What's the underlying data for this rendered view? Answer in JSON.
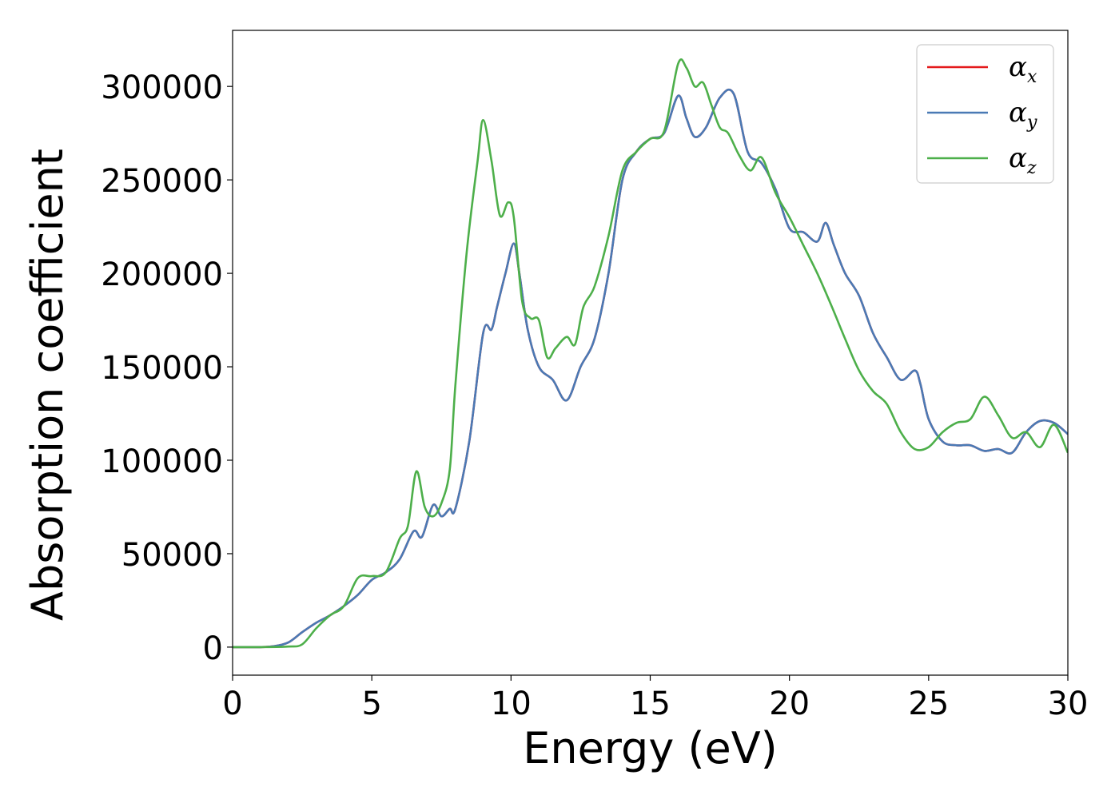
{
  "chart_data": {
    "type": "line",
    "title": "",
    "xlabel": "Energy (eV)",
    "ylabel": "Absorption coefficient",
    "xlim": [
      0,
      30
    ],
    "ylim": [
      -15000,
      330000
    ],
    "xticks": [
      0,
      5,
      10,
      15,
      20,
      25,
      30
    ],
    "xtick_labels": [
      "0",
      "5",
      "10",
      "15",
      "20",
      "25",
      "30"
    ],
    "yticks": [
      0,
      50000,
      100000,
      150000,
      200000,
      250000,
      300000
    ],
    "ytick_labels": [
      "0",
      "50000",
      "100000",
      "150000",
      "200000",
      "250000",
      "300000"
    ],
    "grid": false,
    "legend_position": "top-right",
    "series": [
      {
        "name": "αx",
        "symbol": "α",
        "subscript": "x",
        "color": "#e41a1c",
        "x": [
          0,
          1,
          1.5,
          2,
          2.5,
          3,
          3.5,
          4,
          4.5,
          5,
          5.5,
          6,
          6.5,
          6.8,
          7.2,
          7.5,
          7.8,
          8,
          8.5,
          9,
          9.3,
          9.5,
          9.8,
          10.1,
          10.3,
          10.6,
          11,
          11.5,
          12,
          12.5,
          13,
          13.5,
          14,
          14.5,
          15,
          15.5,
          16,
          16.3,
          16.6,
          17,
          17.5,
          18,
          18.5,
          19,
          19.5,
          20,
          20.5,
          21,
          21.3,
          21.6,
          22,
          22.5,
          23,
          23.5,
          24,
          24.5,
          24.7,
          25,
          25.5,
          26,
          26.5,
          27,
          27.5,
          28,
          28.5,
          29,
          29.5,
          30
        ],
        "y": [
          0,
          0,
          500,
          2500,
          8000,
          13000,
          17000,
          22000,
          28000,
          36000,
          40000,
          47000,
          62000,
          59000,
          76000,
          70000,
          74000,
          74000,
          110000,
          168000,
          170000,
          182000,
          200000,
          216000,
          200000,
          170000,
          150000,
          143000,
          132000,
          150000,
          165000,
          200000,
          250000,
          265000,
          272000,
          275000,
          295000,
          283000,
          273000,
          278000,
          294000,
          296000,
          265000,
          259000,
          245000,
          224000,
          222000,
          217000,
          227000,
          215000,
          200000,
          188000,
          168000,
          155000,
          143000,
          148000,
          141000,
          122000,
          110000,
          108000,
          108000,
          105000,
          106000,
          104000,
          115000,
          121000,
          120000,
          114000
        ]
      },
      {
        "name": "αy",
        "symbol": "α",
        "subscript": "y",
        "color": "#4a7ab5",
        "x": [
          0,
          1,
          1.5,
          2,
          2.5,
          3,
          3.5,
          4,
          4.5,
          5,
          5.5,
          6,
          6.5,
          6.8,
          7.2,
          7.5,
          7.8,
          8,
          8.5,
          9,
          9.3,
          9.5,
          9.8,
          10.1,
          10.3,
          10.6,
          11,
          11.5,
          12,
          12.5,
          13,
          13.5,
          14,
          14.5,
          15,
          15.5,
          16,
          16.3,
          16.6,
          17,
          17.5,
          18,
          18.5,
          19,
          19.5,
          20,
          20.5,
          21,
          21.3,
          21.6,
          22,
          22.5,
          23,
          23.5,
          24,
          24.5,
          24.7,
          25,
          25.5,
          26,
          26.5,
          27,
          27.5,
          28,
          28.5,
          29,
          29.5,
          30
        ],
        "y": [
          0,
          0,
          500,
          2500,
          8000,
          13000,
          17000,
          22000,
          28000,
          36000,
          40000,
          47000,
          62000,
          59000,
          76000,
          70000,
          74000,
          74000,
          110000,
          168000,
          170000,
          182000,
          200000,
          216000,
          200000,
          170000,
          150000,
          143000,
          132000,
          150000,
          165000,
          200000,
          250000,
          265000,
          272000,
          275000,
          295000,
          283000,
          273000,
          278000,
          294000,
          296000,
          265000,
          259000,
          245000,
          224000,
          222000,
          217000,
          227000,
          215000,
          200000,
          188000,
          168000,
          155000,
          143000,
          148000,
          141000,
          122000,
          110000,
          108000,
          108000,
          105000,
          106000,
          104000,
          115000,
          121000,
          120000,
          114000
        ]
      },
      {
        "name": "αz",
        "symbol": "α",
        "subscript": "z",
        "color": "#4daf4a",
        "x": [
          0,
          1,
          2,
          2.5,
          3,
          3.5,
          4,
          4.5,
          5,
          5.5,
          6,
          6.3,
          6.6,
          6.9,
          7.2,
          7.5,
          7.8,
          8,
          8.4,
          8.8,
          9,
          9.3,
          9.6,
          9.9,
          10.1,
          10.4,
          10.7,
          11,
          11.3,
          11.6,
          12,
          12.3,
          12.6,
          13,
          13.5,
          14,
          14.5,
          15,
          15.5,
          16,
          16.3,
          16.6,
          16.9,
          17.2,
          17.5,
          17.8,
          18.2,
          18.6,
          19,
          19.5,
          20,
          20.5,
          21,
          21.5,
          22,
          22.5,
          23,
          23.5,
          24,
          24.5,
          25,
          25.5,
          26,
          26.5,
          27,
          27.5,
          28,
          28.5,
          29,
          29.5,
          30
        ],
        "y": [
          0,
          0,
          300,
          1500,
          10000,
          17000,
          22000,
          37000,
          38000,
          40000,
          58000,
          65000,
          94000,
          75000,
          70000,
          77000,
          95000,
          140000,
          210000,
          260000,
          282000,
          260000,
          231000,
          238000,
          230000,
          185000,
          176000,
          175000,
          155000,
          160000,
          166000,
          162000,
          182000,
          193000,
          220000,
          255000,
          265000,
          272000,
          276000,
          312000,
          310000,
          300000,
          302000,
          290000,
          278000,
          275000,
          263000,
          255000,
          262000,
          243000,
          230000,
          215000,
          200000,
          183000,
          165000,
          148000,
          137000,
          130000,
          115000,
          106000,
          107000,
          115000,
          120000,
          122000,
          134000,
          124000,
          112000,
          115000,
          107000,
          119000,
          104000
        ]
      }
    ]
  }
}
